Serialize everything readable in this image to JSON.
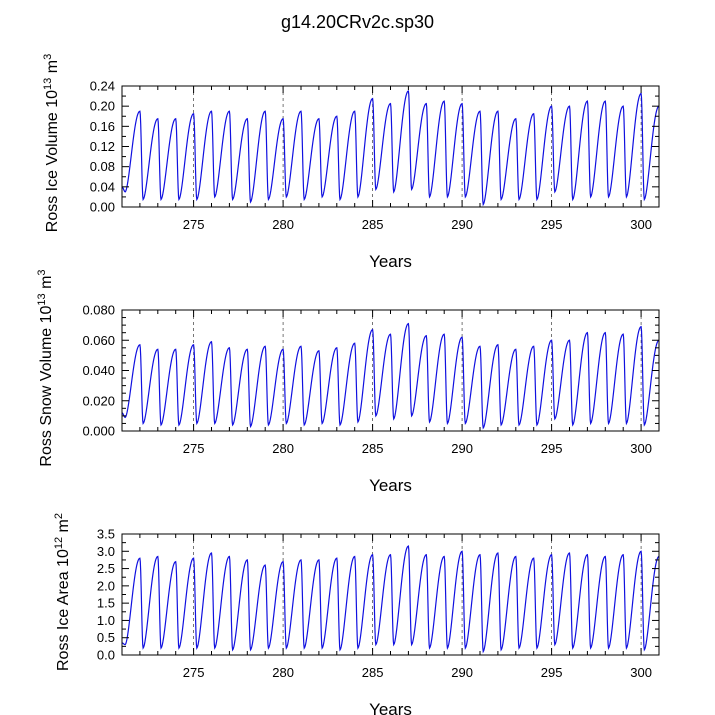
{
  "title": "g14.20CRv2c.sp30",
  "colors": {
    "series": "#1010e0",
    "frame": "#000000",
    "grid": "#555555"
  },
  "chart_data": [
    {
      "type": "line",
      "ylabel": {
        "main": "Ross Ice Volume 10",
        "exp1": "13",
        "mid": " m",
        "exp2": "3"
      },
      "xlabel": "Years",
      "xlim": [
        271,
        301
      ],
      "ylim": [
        0,
        0.24
      ],
      "yticks": [
        "0.00",
        "0.04",
        "0.08",
        "0.12",
        "0.16",
        "0.20",
        "0.24"
      ],
      "ytick_values": [
        0,
        0.04,
        0.08,
        0.12,
        0.16,
        0.2,
        0.24
      ],
      "ytick_minor_step": 0.02,
      "xticks": [
        "275",
        "280",
        "285",
        "290",
        "295",
        "300"
      ],
      "xtick_values": [
        275,
        280,
        285,
        290,
        295,
        300
      ],
      "vlines": [
        275,
        280,
        285,
        290,
        295,
        300
      ],
      "series": [
        {
          "name": "Ross Ice Volume",
          "x0": 271,
          "step": 1,
          "min_values": [
            0.03,
            0.015,
            0.015,
            0.015,
            0.015,
            0.02,
            0.015,
            0.01,
            0.015,
            0.02,
            0.015,
            0.02,
            0.015,
            0.02,
            0.035,
            0.03,
            0.035,
            0.02,
            0.02,
            0.02,
            0.005,
            0.015,
            0.015,
            0.015,
            0.03,
            0.015,
            0.02,
            0.02,
            0.02,
            0.015
          ],
          "max_values": [
            0.19,
            0.175,
            0.175,
            0.185,
            0.19,
            0.19,
            0.175,
            0.19,
            0.175,
            0.19,
            0.175,
            0.18,
            0.19,
            0.215,
            0.205,
            0.23,
            0.205,
            0.21,
            0.205,
            0.19,
            0.19,
            0.175,
            0.185,
            0.2,
            0.2,
            0.21,
            0.21,
            0.2,
            0.225,
            0.2
          ],
          "start_value": 0.04
        }
      ]
    },
    {
      "type": "line",
      "ylabel": {
        "main": "Ross Snow Volume 10",
        "exp1": "13",
        "mid": " m",
        "exp2": "3"
      },
      "xlabel": "Years",
      "xlim": [
        271,
        301
      ],
      "ylim": [
        0,
        0.08
      ],
      "yticks": [
        "0.000",
        "0.020",
        "0.040",
        "0.060",
        "0.080"
      ],
      "ytick_values": [
        0,
        0.02,
        0.04,
        0.06,
        0.08
      ],
      "ytick_minor_step": 0.005,
      "xticks": [
        "275",
        "280",
        "285",
        "290",
        "295",
        "300"
      ],
      "xtick_values": [
        275,
        280,
        285,
        290,
        295,
        300
      ],
      "vlines": [
        275,
        280,
        285,
        290,
        295,
        300
      ],
      "series": [
        {
          "name": "Ross Snow Volume",
          "x0": 271,
          "step": 1,
          "min_values": [
            0.009,
            0.005,
            0.004,
            0.004,
            0.005,
            0.005,
            0.004,
            0.003,
            0.004,
            0.005,
            0.004,
            0.005,
            0.004,
            0.006,
            0.01,
            0.008,
            0.01,
            0.006,
            0.005,
            0.005,
            0.002,
            0.004,
            0.004,
            0.004,
            0.008,
            0.004,
            0.005,
            0.005,
            0.005,
            0.004
          ],
          "max_values": [
            0.057,
            0.054,
            0.054,
            0.057,
            0.059,
            0.055,
            0.054,
            0.056,
            0.054,
            0.056,
            0.053,
            0.055,
            0.058,
            0.067,
            0.064,
            0.071,
            0.063,
            0.064,
            0.062,
            0.056,
            0.057,
            0.054,
            0.056,
            0.06,
            0.06,
            0.065,
            0.065,
            0.064,
            0.069,
            0.06
          ],
          "start_value": 0.012
        }
      ]
    },
    {
      "type": "line",
      "ylabel": {
        "main": "Ross Ice Area 10",
        "exp1": "12",
        "mid": " m",
        "exp2": "2"
      },
      "xlabel": "Years",
      "xlim": [
        271,
        301
      ],
      "ylim": [
        0,
        3.5
      ],
      "yticks": [
        "0.0",
        "0.5",
        "1.0",
        "1.5",
        "2.0",
        "2.5",
        "3.0",
        "3.5"
      ],
      "ytick_values": [
        0,
        0.5,
        1,
        1.5,
        2,
        2.5,
        3,
        3.5
      ],
      "ytick_minor_step": 0.25,
      "xticks": [
        "275",
        "280",
        "285",
        "290",
        "295",
        "300"
      ],
      "xtick_values": [
        275,
        280,
        285,
        290,
        295,
        300
      ],
      "vlines": [
        275,
        280,
        285,
        290,
        295,
        300
      ],
      "series": [
        {
          "name": "Ross Ice Area",
          "x0": 271,
          "step": 1,
          "min_values": [
            0.3,
            0.2,
            0.2,
            0.2,
            0.2,
            0.2,
            0.15,
            0.15,
            0.2,
            0.2,
            0.2,
            0.2,
            0.15,
            0.2,
            0.3,
            0.3,
            0.3,
            0.2,
            0.2,
            0.2,
            0.1,
            0.15,
            0.2,
            0.2,
            0.3,
            0.2,
            0.2,
            0.2,
            0.2,
            0.15
          ],
          "max_values": [
            2.8,
            2.85,
            2.7,
            2.8,
            2.95,
            2.85,
            2.75,
            2.6,
            2.7,
            2.75,
            2.75,
            2.8,
            2.85,
            2.9,
            2.9,
            3.15,
            2.9,
            2.85,
            3.0,
            2.9,
            2.95,
            2.85,
            2.8,
            2.9,
            2.95,
            2.9,
            2.85,
            2.9,
            3.0,
            2.85
          ],
          "start_value": 0.35
        }
      ]
    }
  ]
}
